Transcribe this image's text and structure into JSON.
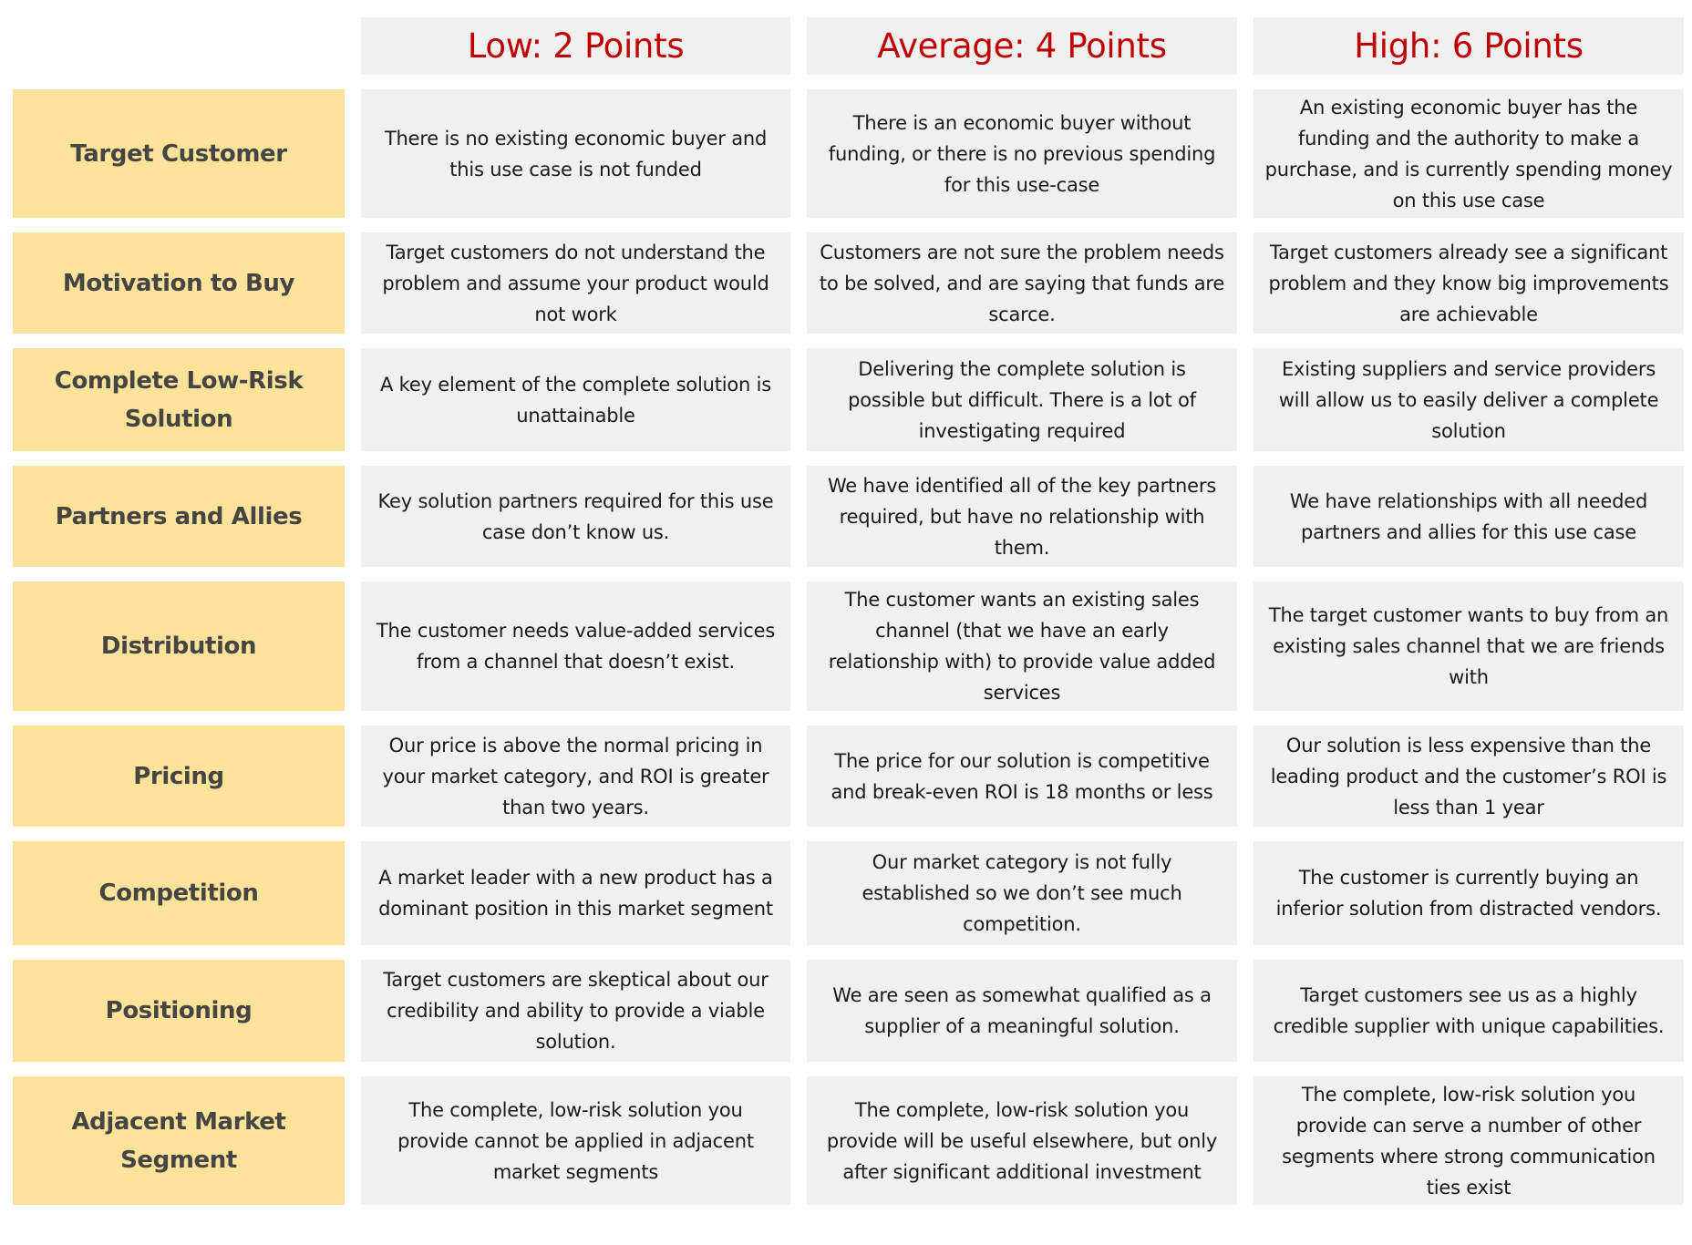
{
  "columns": [
    {
      "label": "Low: 2 Points",
      "points": 2
    },
    {
      "label": "Average: 4 Points",
      "points": 4
    },
    {
      "label": "High: 6 Points",
      "points": 6
    }
  ],
  "colors": {
    "header_text": "#c00000",
    "header_bg": "#f0f0f0",
    "label_bg": "#fde299",
    "label_text": "#454545",
    "cell_bg": "#f0f0f0"
  },
  "rows": [
    {
      "label": "Target Customer",
      "cells": [
        "There is no existing economic buyer and this use case is not funded",
        "There is an economic buyer without funding, or there is no previous spending for this use-case",
        "An existing economic buyer has the funding and the authority to make a purchase, and is currently spending money on this use case"
      ]
    },
    {
      "label": "Motivation to Buy",
      "cells": [
        "Target customers do not understand the problem and assume your product would not work",
        "Customers are not sure the problem needs to be solved, and are saying that funds are scarce.",
        "Target customers already see a significant problem and they know big improvements are achievable"
      ]
    },
    {
      "label": "Complete Low-Risk Solution",
      "cells": [
        "A key element of the complete solution is unattainable",
        "Delivering the complete solution is possible but difficult. There is a lot of investigating required",
        "Existing suppliers and service providers will allow us to easily deliver a complete solution"
      ]
    },
    {
      "label": "Partners and Allies",
      "cells": [
        "Key solution partners required for this use case don’t know us.",
        "We have identified all of the key partners required, but have no relationship with them.",
        "We have relationships with all needed partners and allies for this use case"
      ]
    },
    {
      "label": "Distribution",
      "cells": [
        "The customer needs value-added services from a channel that doesn’t exist.",
        "The customer wants an existing sales channel (that we have an early relationship with) to provide value added services",
        "The target customer wants to buy from an existing sales channel that we are friends with"
      ]
    },
    {
      "label": "Pricing",
      "cells": [
        "Our price is above the normal pricing in your market category, and ROI is greater than two years.",
        "The price for our solution is competitive and break-even ROI is 18 months or less",
        "Our solution is less expensive than the leading product and the customer’s ROI is less than 1 year"
      ]
    },
    {
      "label": "Competition",
      "cells": [
        "A market leader with a new product has a dominant position in this market segment",
        "Our market category is not fully established so we don’t see much competition.",
        "The customer is currently buying an inferior solution from distracted vendors."
      ]
    },
    {
      "label": "Positioning",
      "cells": [
        "Target customers are skeptical about our credibility and ability to provide a viable solution.",
        "We are seen as somewhat qualified as a supplier of a meaningful solution.",
        "Target customers see us as a highly credible supplier with unique capabilities."
      ]
    },
    {
      "label": "Adjacent Market Segment",
      "cells": [
        "The complete, low-risk solution you provide cannot be applied in adjacent market segments",
        "The complete, low-risk solution you provide will be useful elsewhere, but only after significant additional investment",
        "The complete, low-risk solution you provide can serve a number of other segments where strong communication ties exist"
      ]
    }
  ]
}
